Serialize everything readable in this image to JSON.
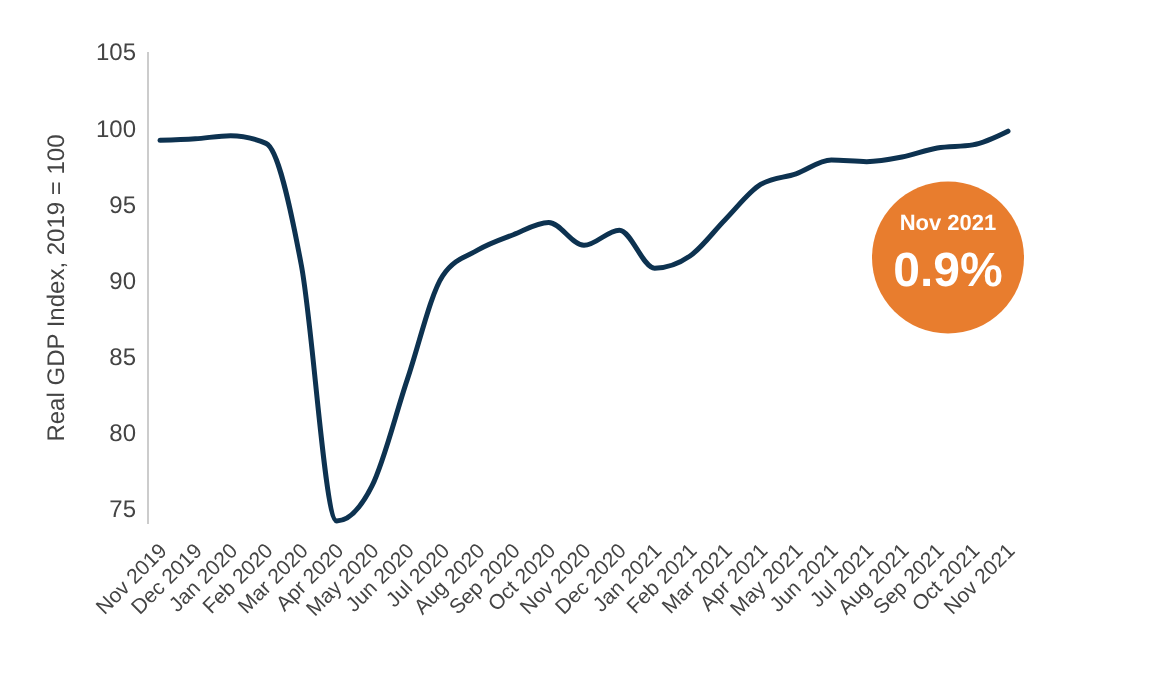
{
  "chart_data": {
    "type": "line",
    "ylabel": "Real GDP Index, 2019 = 100",
    "categories": [
      "Nov 2019",
      "Dec 2019",
      "Jan 2020",
      "Feb 2020",
      "Mar 2020",
      "Apr 2020",
      "May 2020",
      "Jun 2020",
      "Jul 2020",
      "Aug 2020",
      "Sep 2020",
      "Oct 2020",
      "Nov 2020",
      "Dec 2020",
      "Jan 2021",
      "Feb 2021",
      "Mar 2021",
      "Apr 2021",
      "May 2021",
      "Jun 2021",
      "Jul 2021",
      "Aug 2021",
      "Sep 2021",
      "Oct 2021",
      "Nov 2021"
    ],
    "series": [
      {
        "color": "#0d3250",
        "values": [
          99.2,
          99.3,
          99.5,
          99.0,
          91.0,
          74.2,
          76.5,
          83.5,
          90.3,
          92.0,
          93.0,
          93.8,
          92.3,
          93.3,
          90.8,
          91.6,
          94.0,
          96.3,
          97.0,
          97.9,
          97.8,
          98.1,
          98.7,
          98.9,
          99.8
        ]
      }
    ],
    "ylim": [
      74,
      105
    ],
    "yticks": [
      75,
      80,
      85,
      90,
      95,
      100,
      105
    ],
    "grid": false,
    "annotations": [
      "Nov 2021",
      "0.9%"
    ]
  }
}
